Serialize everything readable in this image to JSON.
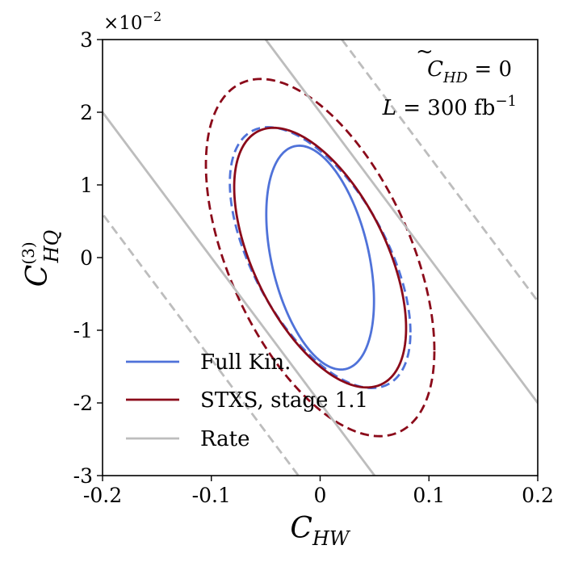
{
  "chart_data": {
    "type": "line",
    "title": "",
    "xlabel": {
      "main": "C",
      "sub": "HW"
    },
    "ylabel": {
      "main": "C",
      "sup": "(3)",
      "sub": "HQ"
    },
    "xlim": [
      -0.2,
      0.2
    ],
    "ylim": [
      -3,
      3
    ],
    "y_multiplier": "×10",
    "y_multiplier_exp": "−2",
    "x_ticks": [
      -0.2,
      -0.1,
      0,
      0.1,
      0.2
    ],
    "x_tick_labels": [
      "-0.2",
      "-0.1",
      "0",
      "0.1",
      "0.2"
    ],
    "y_ticks": [
      -3,
      -2,
      -1,
      0,
      1,
      2,
      3
    ],
    "y_tick_labels": [
      "-3",
      "-2",
      "-1",
      "0",
      "1",
      "2",
      "3"
    ],
    "grid": false,
    "legend_position": "bottom-left",
    "annotations": {
      "line1": {
        "c": "C",
        "sub": "HD",
        "rhs": " = 0"
      },
      "line2": {
        "l": "L",
        "eq": " = 300",
        "unit": " fb",
        "exp": "−1"
      }
    },
    "series": [
      {
        "name": "Full Kin.",
        "color": "#4f72d9",
        "style": "solid",
        "kind": "ellipse",
        "center": [
          0.0,
          -0.0005
        ],
        "semi_axes": [
          0.0495,
          1.42
        ],
        "rotation_factor": 0.17
      },
      {
        "name": "",
        "color": "#4f72d9",
        "style": "dashed",
        "kind": "ellipse",
        "center": [
          0.0,
          -0.0005
        ],
        "semi_axes": [
          0.083,
          1.47
        ],
        "rotation_factor": 0.2
      },
      {
        "name": "STXS, stage 1.1",
        "color": "#8b0a1a",
        "style": "solid",
        "kind": "ellipse",
        "center": [
          0.0,
          -0.0005
        ],
        "semi_axes": [
          0.079,
          1.5
        ],
        "rotation_factor": 0.19
      },
      {
        "name": "",
        "color": "#8b0a1a",
        "style": "dashed",
        "kind": "ellipse",
        "center": [
          0.0,
          0.0
        ],
        "semi_axes": [
          0.105,
          2.1
        ],
        "rotation_factor": 0.18
      },
      {
        "name": "Rate",
        "color": "#bdbdbd",
        "style": "solid",
        "kind": "lines",
        "slope": -20.0,
        "intercepts": [
          -0.1,
          0.1
        ]
      },
      {
        "name": "",
        "color": "#bdbdbd",
        "style": "dashed",
        "kind": "lines",
        "slope": -20.0,
        "intercepts": [
          -0.17,
          0.17
        ]
      }
    ]
  }
}
